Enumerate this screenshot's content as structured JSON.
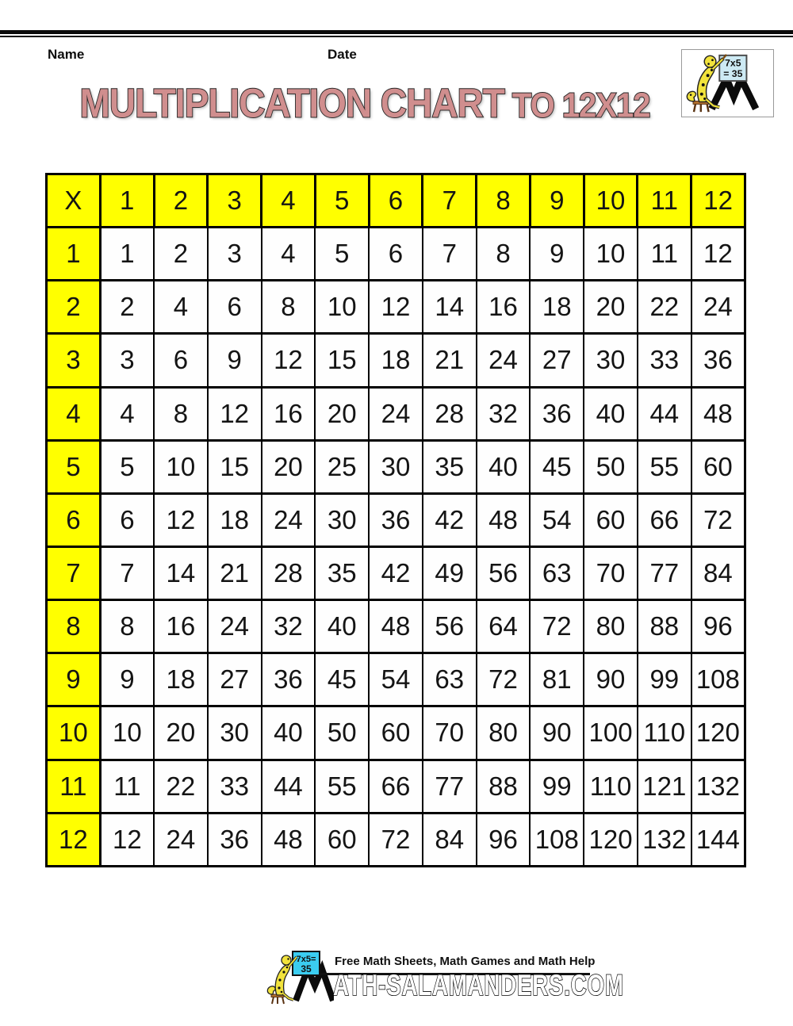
{
  "page": {
    "name_label": "Name",
    "date_label": "Date",
    "title_main": "MULTIPLICATION CHART",
    "title_suffix": "TO 12X12",
    "title_color": "#d08e8e",
    "header_yellow": "#ffff00"
  },
  "logo": {
    "equation_top": "7x5",
    "equation_bottom": "= 35"
  },
  "table": {
    "corner_label": "X",
    "column_headers": [
      "1",
      "2",
      "3",
      "4",
      "5",
      "6",
      "7",
      "8",
      "9",
      "10",
      "11",
      "12"
    ],
    "rows": [
      {
        "header": "1",
        "values": [
          1,
          2,
          3,
          4,
          5,
          6,
          7,
          8,
          9,
          10,
          11,
          12
        ]
      },
      {
        "header": "2",
        "values": [
          2,
          4,
          6,
          8,
          10,
          12,
          14,
          16,
          18,
          20,
          22,
          24
        ]
      },
      {
        "header": "3",
        "values": [
          3,
          6,
          9,
          12,
          15,
          18,
          21,
          24,
          27,
          30,
          33,
          36
        ]
      },
      {
        "header": "4",
        "values": [
          4,
          8,
          12,
          16,
          20,
          24,
          28,
          32,
          36,
          40,
          44,
          48
        ]
      },
      {
        "header": "5",
        "values": [
          5,
          10,
          15,
          20,
          25,
          30,
          35,
          40,
          45,
          50,
          55,
          60
        ]
      },
      {
        "header": "6",
        "values": [
          6,
          12,
          18,
          24,
          30,
          36,
          42,
          48,
          54,
          60,
          66,
          72
        ]
      },
      {
        "header": "7",
        "values": [
          7,
          14,
          21,
          28,
          35,
          42,
          49,
          56,
          63,
          70,
          77,
          84
        ]
      },
      {
        "header": "8",
        "values": [
          8,
          16,
          24,
          32,
          40,
          48,
          56,
          64,
          72,
          80,
          88,
          96
        ]
      },
      {
        "header": "9",
        "values": [
          9,
          18,
          27,
          36,
          45,
          54,
          63,
          72,
          81,
          90,
          99,
          108
        ]
      },
      {
        "header": "10",
        "values": [
          10,
          20,
          30,
          40,
          50,
          60,
          70,
          80,
          90,
          100,
          110,
          120
        ]
      },
      {
        "header": "11",
        "values": [
          11,
          22,
          33,
          44,
          55,
          66,
          77,
          88,
          99,
          110,
          121,
          132
        ]
      },
      {
        "header": "12",
        "values": [
          12,
          24,
          36,
          48,
          60,
          72,
          84,
          96,
          108,
          120,
          132,
          144
        ]
      }
    ]
  },
  "footer": {
    "tagline": "Free Math Sheets, Math Games and Math Help",
    "site_text": "ATH-SALAMANDERS.COM",
    "logo_equation_top": "7x5=",
    "logo_equation_bottom": "35"
  }
}
